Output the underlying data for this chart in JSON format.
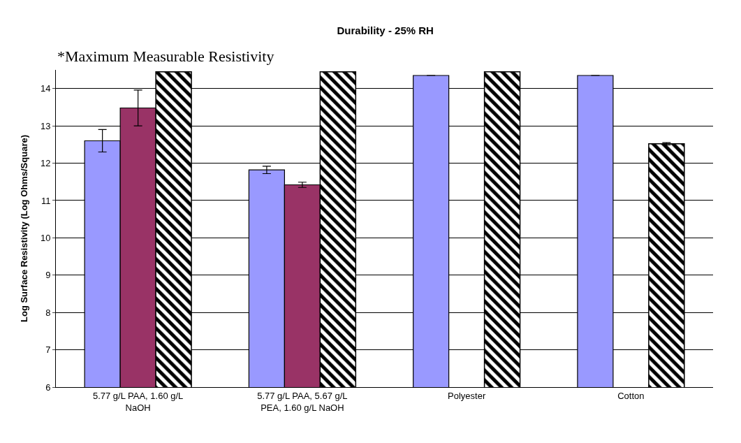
{
  "chart_data": {
    "type": "bar",
    "title": "Durability - 25% RH",
    "ylabel": "Log Surface Resistivity (Log Ohms/Square)",
    "categories": [
      "5.77 g/L PAA, 1.60 g/L NaOH",
      "5.77 g/L PAA, 5.67 g/L PEA, 1.60 g/L NaOH",
      "Polyester",
      "Cotton"
    ],
    "series": [
      {
        "color": "#9999ff",
        "values": [
          12.6,
          11.82,
          14.35,
          14.35
        ],
        "errors": [
          0.3,
          0.1,
          null,
          null
        ]
      },
      {
        "color": "#993366",
        "values": [
          13.48,
          11.42,
          null,
          null
        ],
        "errors": [
          0.48,
          0.07,
          null,
          null
        ]
      },
      {
        "color": "#000000",
        "values": [
          14.45,
          14.45,
          14.45,
          12.52
        ],
        "errors": [
          null,
          null,
          null,
          0.03
        ]
      }
    ],
    "annotations": [
      "*Maximum Measurable Resistivity"
    ],
    "ylim": [
      6,
      14.5
    ],
    "yticks": [
      6,
      7,
      8,
      9,
      10,
      11,
      12,
      13,
      14
    ],
    "grid": "y",
    "legend": false
  }
}
